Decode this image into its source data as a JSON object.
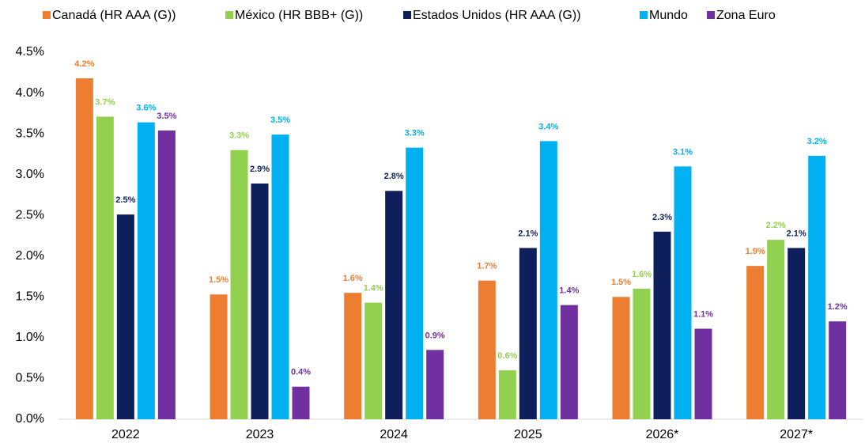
{
  "chart_data": {
    "type": "bar",
    "categories": [
      "2022",
      "2023",
      "2024",
      "2025",
      "2026*",
      "2027*"
    ],
    "series": [
      {
        "name": "Canadá (HR AAA (G))",
        "color": "#ed7d31",
        "values": [
          4.18,
          1.53,
          1.55,
          1.7,
          1.5,
          1.88
        ],
        "value_labels": [
          "4.2%",
          "1.5%",
          "1.6%",
          "1.7%",
          "1.5%",
          "1.9%"
        ]
      },
      {
        "name": "México (HR BBB+ (G))",
        "color": "#92d050",
        "values": [
          3.71,
          3.3,
          1.43,
          0.6,
          1.6,
          2.2
        ],
        "value_labels": [
          "3.7%",
          "3.3%",
          "1.4%",
          "0.6%",
          "1.6%",
          "2.2%"
        ]
      },
      {
        "name": "Estados Unidos (HR AAA (G))",
        "color": "#0f1f5c",
        "values": [
          2.51,
          2.89,
          2.8,
          2.1,
          2.3,
          2.1
        ],
        "value_labels": [
          "2.5%",
          "2.9%",
          "2.8%",
          "2.1%",
          "2.3%",
          "2.1%"
        ]
      },
      {
        "name": "Mundo",
        "color": "#00b0f0",
        "values": [
          3.64,
          3.49,
          3.33,
          3.41,
          3.1,
          3.23
        ],
        "value_labels": [
          "3.6%",
          "3.5%",
          "3.3%",
          "3.4%",
          "3.1%",
          "3.2%"
        ]
      },
      {
        "name": "Zona Euro",
        "color": "#7030a0",
        "values": [
          3.54,
          0.4,
          0.85,
          1.4,
          1.11,
          1.2
        ],
        "value_labels": [
          "3.5%",
          "0.4%",
          "0.9%",
          "1.4%",
          "1.1%",
          "1.2%"
        ]
      }
    ],
    "ylim": [
      0,
      4.5
    ],
    "yticks": [
      {
        "value": 0,
        "label": "0.0%"
      },
      {
        "value": 0.5,
        "label": "0.5%"
      },
      {
        "value": 1,
        "label": "1.0%"
      },
      {
        "value": 1.5,
        "label": "1.5%"
      },
      {
        "value": 2,
        "label": "2.0%"
      },
      {
        "value": 2.5,
        "label": "2.5%"
      },
      {
        "value": 3,
        "label": "3.0%"
      },
      {
        "value": 3.5,
        "label": "3.5%"
      },
      {
        "value": 4,
        "label": "4.0%"
      },
      {
        "value": 4.5,
        "label": "4.5%"
      }
    ],
    "legend": "top"
  }
}
